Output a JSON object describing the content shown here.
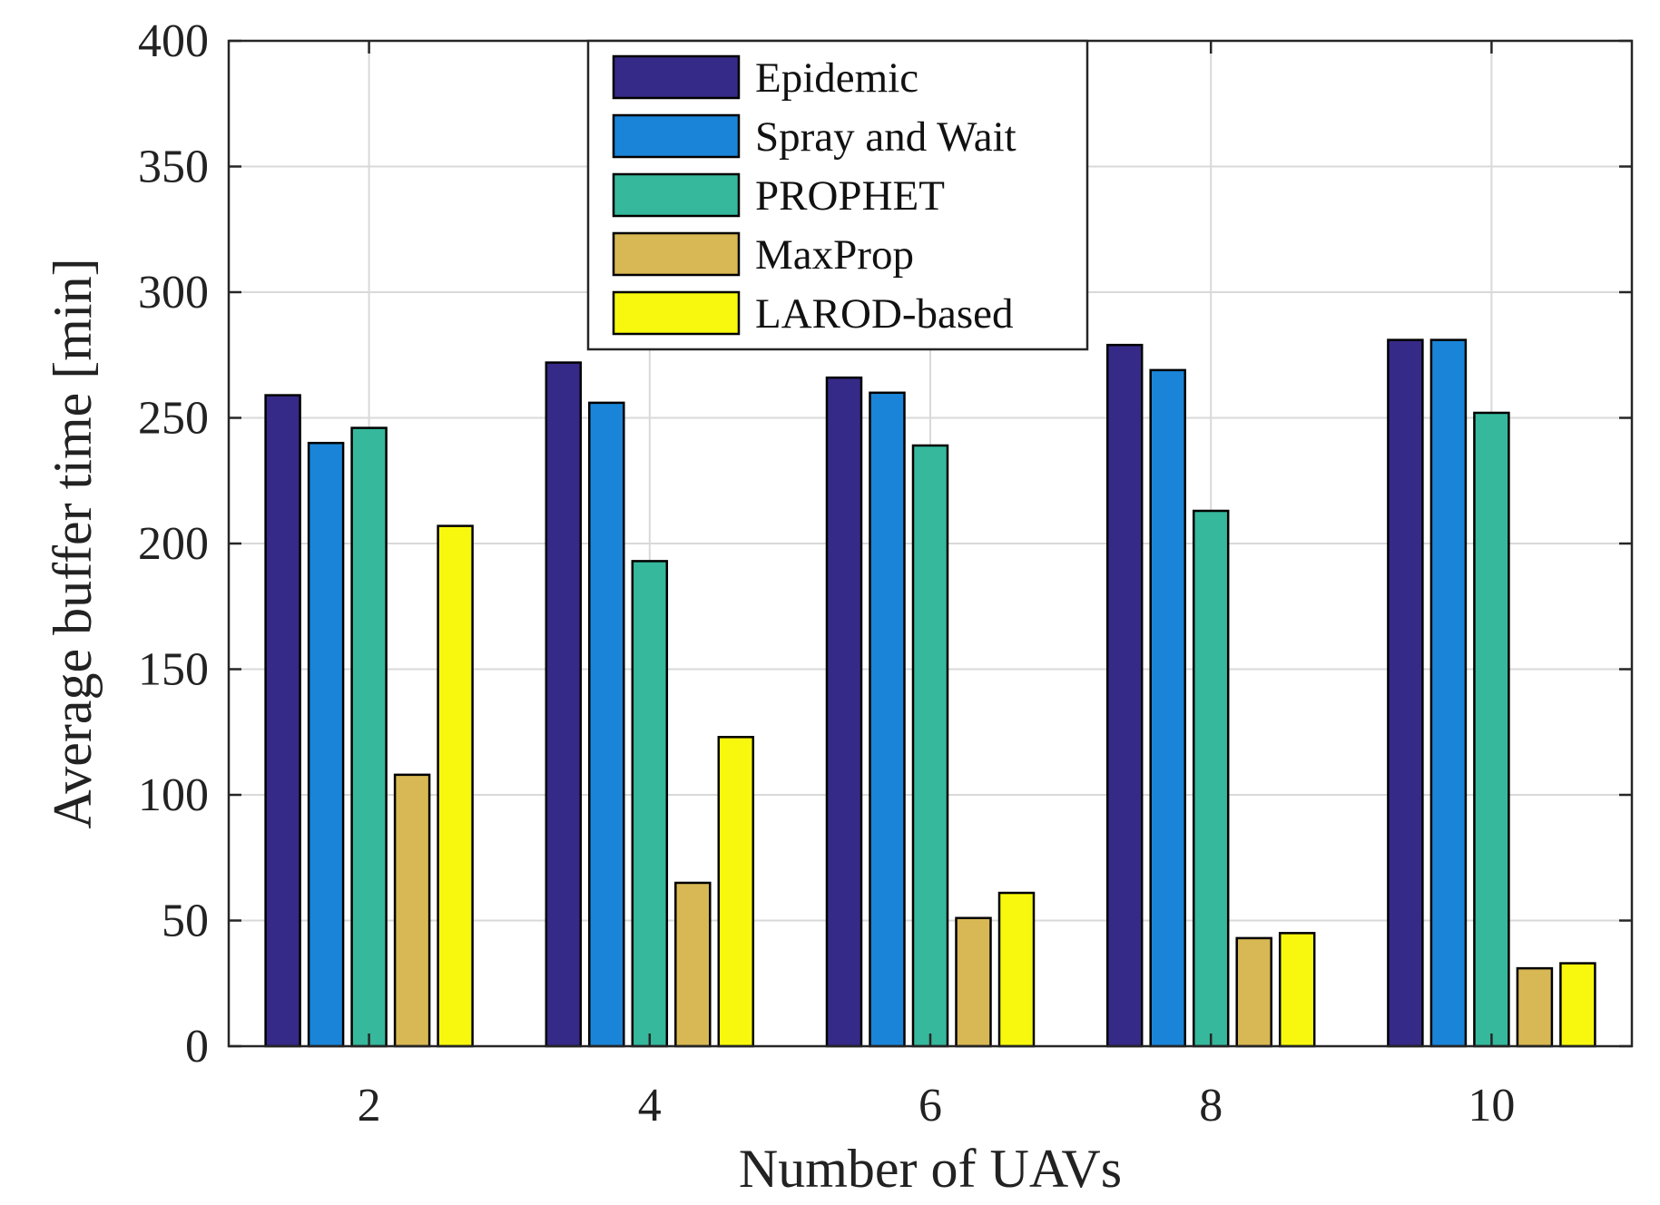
{
  "chart_data": {
    "type": "bar",
    "title": "",
    "xlabel": "Number of UAVs",
    "ylabel": "Average buffer time [min]",
    "ylim": [
      0,
      400
    ],
    "yticks": [
      0,
      50,
      100,
      150,
      200,
      250,
      300,
      350,
      400
    ],
    "categories": [
      "2",
      "4",
      "6",
      "8",
      "10"
    ],
    "grid": true,
    "legend_position": "top-center",
    "series": [
      {
        "name": "Epidemic",
        "color": "#352a87",
        "values": [
          259,
          272,
          266,
          279,
          281
        ]
      },
      {
        "name": "Spray and Wait",
        "color": "#1a85d8",
        "values": [
          240,
          256,
          260,
          269,
          281
        ]
      },
      {
        "name": "PROPHET",
        "color": "#36b89c",
        "values": [
          246,
          193,
          239,
          213,
          252
        ]
      },
      {
        "name": "MaxProp",
        "color": "#d8b854",
        "values": [
          108,
          65,
          51,
          43,
          31
        ]
      },
      {
        "name": "LAROD-based",
        "color": "#f8f80e",
        "values": [
          207,
          123,
          61,
          45,
          33
        ]
      }
    ]
  }
}
